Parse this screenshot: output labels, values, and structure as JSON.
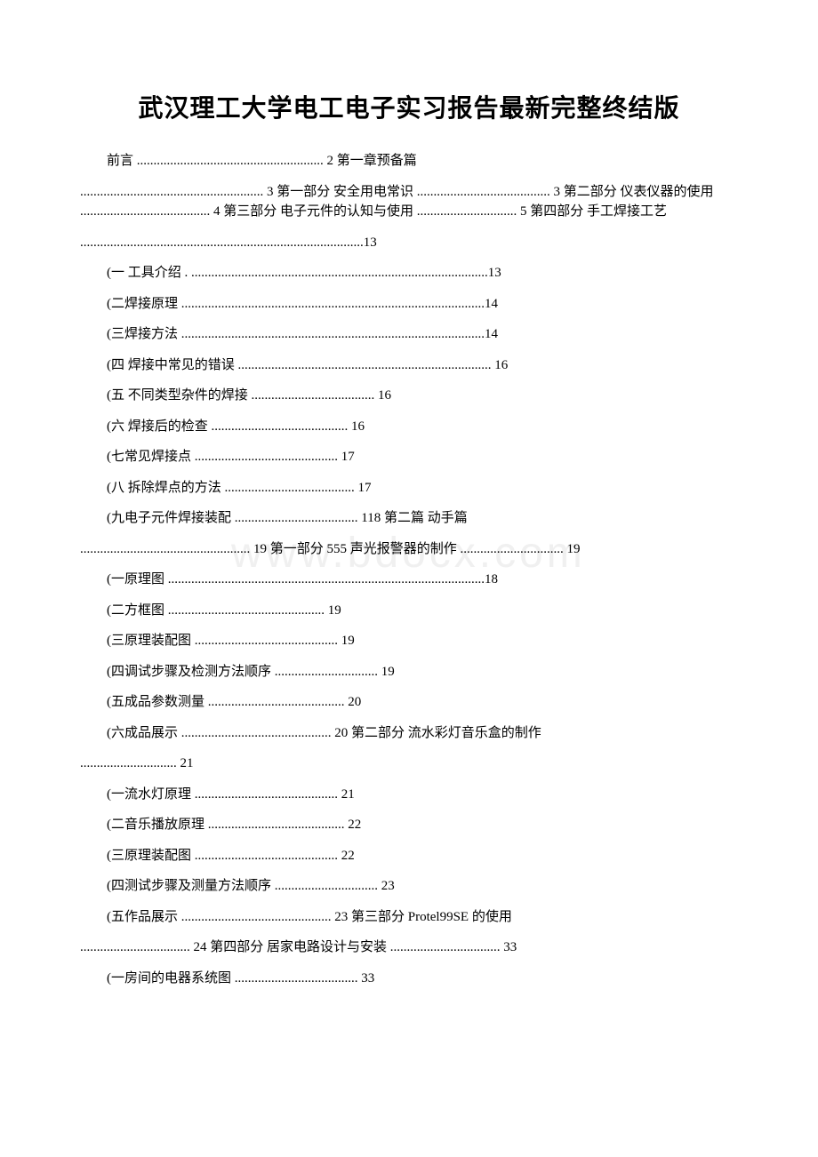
{
  "document": {
    "title": "武汉理工大学电工电子实习报告最新完整终结版",
    "watermark": "www.bdocx.com",
    "colors": {
      "text": "#000000",
      "background": "#ffffff",
      "watermark": "#f0f0f0"
    },
    "typography": {
      "title_fontsize": 28,
      "body_fontsize": 15,
      "title_font": "SimHei",
      "body_font": "SimSun"
    },
    "paragraphs": [
      {
        "indent": true,
        "text": "前言 ........................................................ 2 第一章预备篇"
      },
      {
        "indent": false,
        "text": "....................................................... 3 第一部分 安全用电常识 ........................................ 3 第二部分 仪表仪器的使用 ....................................... 4 第三部分 电子元件的认知与使用 .............................. 5 第四部分 手工焊接工艺"
      },
      {
        "indent": false,
        "text": ".....................................................................................13"
      },
      {
        "indent": true,
        "text": "(一 工具介绍 . .........................................................................................13"
      },
      {
        "indent": true,
        "text": "(二焊接原理 ...........................................................................................14"
      },
      {
        "indent": true,
        "text": "(三焊接方法 ...........................................................................................14"
      },
      {
        "indent": true,
        "text": "(四 焊接中常见的错误 ............................................................................ 16"
      },
      {
        "indent": true,
        "text": "(五 不同类型杂件的焊接 ..................................... 16"
      },
      {
        "indent": true,
        "text": "(六 焊接后的检查 ......................................... 16"
      },
      {
        "indent": true,
        "text": "(七常见焊接点 ........................................... 17"
      },
      {
        "indent": true,
        "text": "(八 拆除焊点的方法 ....................................... 17"
      },
      {
        "indent": true,
        "text": "(九电子元件焊接装配 ..................................... 118 第二篇 动手篇"
      },
      {
        "indent": false,
        "text": "................................................... 19 第一部分 555 声光报警器的制作 ............................... 19"
      },
      {
        "indent": true,
        "text": "(一原理图 ...............................................................................................18"
      },
      {
        "indent": true,
        "text": "(二方框图 ............................................... 19"
      },
      {
        "indent": true,
        "text": "(三原理装配图 ........................................... 19"
      },
      {
        "indent": true,
        "text": "(四调试步骤及检测方法顺序 ............................... 19"
      },
      {
        "indent": true,
        "text": "(五成品参数测量 ......................................... 20"
      },
      {
        "indent": true,
        "text": "(六成品展示 ............................................. 20 第二部分 流水彩灯音乐盒的制作"
      },
      {
        "indent": false,
        "text": "............................. 21"
      },
      {
        "indent": true,
        "text": "(一流水灯原理 ........................................... 21"
      },
      {
        "indent": true,
        "text": "(二音乐播放原理 ......................................... 22"
      },
      {
        "indent": true,
        "text": "(三原理装配图 ........................................... 22"
      },
      {
        "indent": true,
        "text": "(四测试步骤及测量方法顺序 ............................... 23"
      },
      {
        "indent": true,
        "text": "(五作品展示 ............................................. 23 第三部分 Protel99SE 的使用"
      },
      {
        "indent": false,
        "text": "................................. 24 第四部分 居家电路设计与安装 ................................. 33"
      },
      {
        "indent": true,
        "text": "(一房间的电器系统图 ..................................... 33"
      }
    ]
  }
}
